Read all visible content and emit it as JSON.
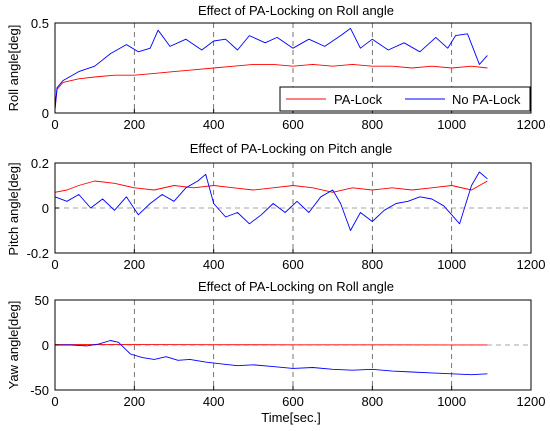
{
  "chart_data": [
    {
      "type": "line",
      "title": "Effect of PA-Locking on Roll angle",
      "xlabel": "",
      "ylabel": "Roll angle[deg]",
      "xlim": [
        0,
        1200
      ],
      "ylim": [
        0,
        0.5
      ],
      "xticks": [
        0,
        200,
        400,
        600,
        800,
        1000,
        1200
      ],
      "yticks": [
        0,
        0.5
      ],
      "xtick_labels": [
        "0",
        "200",
        "400",
        "600",
        "800",
        "1000",
        "1200"
      ],
      "ytick_labels": [
        "0",
        "0.5"
      ],
      "grid": true,
      "legend": {
        "placement": "bottom-right",
        "entries": [
          "PA-Lock",
          "No PA-Lock"
        ]
      },
      "series": [
        {
          "name": "PA-Lock",
          "color": "#ff0000",
          "x": [
            0,
            5,
            20,
            60,
            100,
            150,
            200,
            250,
            300,
            350,
            400,
            450,
            500,
            550,
            600,
            650,
            700,
            750,
            800,
            850,
            900,
            950,
            1000,
            1050,
            1090
          ],
          "y": [
            0.02,
            0.13,
            0.17,
            0.19,
            0.2,
            0.21,
            0.21,
            0.22,
            0.23,
            0.24,
            0.25,
            0.26,
            0.27,
            0.27,
            0.26,
            0.27,
            0.26,
            0.27,
            0.26,
            0.26,
            0.25,
            0.26,
            0.25,
            0.26,
            0.25
          ]
        },
        {
          "name": "No PA-Lock",
          "color": "#0000ff",
          "x": [
            0,
            5,
            20,
            60,
            100,
            140,
            180,
            210,
            240,
            260,
            290,
            330,
            370,
            400,
            430,
            460,
            490,
            530,
            560,
            600,
            640,
            680,
            720,
            745,
            770,
            800,
            840,
            880,
            920,
            960,
            990,
            1010,
            1040,
            1070,
            1090
          ],
          "y": [
            0.02,
            0.14,
            0.18,
            0.23,
            0.26,
            0.33,
            0.38,
            0.34,
            0.36,
            0.46,
            0.37,
            0.41,
            0.35,
            0.4,
            0.41,
            0.35,
            0.43,
            0.39,
            0.42,
            0.36,
            0.41,
            0.37,
            0.43,
            0.47,
            0.36,
            0.41,
            0.35,
            0.39,
            0.34,
            0.42,
            0.36,
            0.43,
            0.44,
            0.27,
            0.32
          ]
        }
      ]
    },
    {
      "type": "line",
      "title": "Effect of PA-Locking on Pitch angle",
      "xlabel": "",
      "ylabel": "Pitch angle[deg]",
      "xlim": [
        0,
        1200
      ],
      "ylim": [
        -0.2,
        0.2
      ],
      "xticks": [
        0,
        200,
        400,
        600,
        800,
        1000,
        1200
      ],
      "yticks": [
        -0.2,
        0,
        0.2
      ],
      "xtick_labels": [
        "0",
        "200",
        "400",
        "600",
        "800",
        "1000",
        "1200"
      ],
      "ytick_labels": [
        "-0.2",
        "0",
        "0.2"
      ],
      "grid": true,
      "series": [
        {
          "name": "PA-Lock",
          "color": "#ff0000",
          "x": [
            0,
            30,
            60,
            100,
            150,
            200,
            250,
            300,
            350,
            400,
            450,
            500,
            550,
            600,
            650,
            700,
            750,
            800,
            850,
            900,
            950,
            1000,
            1050,
            1090
          ],
          "y": [
            0.07,
            0.08,
            0.1,
            0.12,
            0.11,
            0.09,
            0.08,
            0.1,
            0.09,
            0.1,
            0.09,
            0.08,
            0.09,
            0.1,
            0.09,
            0.07,
            0.09,
            0.08,
            0.09,
            0.08,
            0.09,
            0.1,
            0.08,
            0.12
          ]
        },
        {
          "name": "No PA-Lock",
          "color": "#0000ff",
          "x": [
            0,
            30,
            60,
            90,
            120,
            150,
            180,
            210,
            240,
            270,
            300,
            330,
            360,
            380,
            400,
            430,
            460,
            490,
            520,
            550,
            580,
            610,
            640,
            670,
            700,
            720,
            745,
            770,
            800,
            830,
            860,
            890,
            920,
            950,
            980,
            1000,
            1020,
            1050,
            1070,
            1090
          ],
          "y": [
            0.05,
            0.03,
            0.06,
            0.0,
            0.04,
            -0.01,
            0.05,
            -0.03,
            0.02,
            0.06,
            0.03,
            0.09,
            0.12,
            0.15,
            0.02,
            -0.04,
            -0.02,
            -0.07,
            -0.03,
            0.02,
            -0.02,
            0.03,
            -0.02,
            0.05,
            0.08,
            0.02,
            -0.1,
            -0.02,
            -0.06,
            -0.01,
            0.02,
            0.03,
            0.05,
            0.04,
            0.01,
            -0.03,
            -0.07,
            0.1,
            0.16,
            0.13
          ]
        }
      ]
    },
    {
      "type": "line",
      "title": "Effect of PA-Locking on Roll angle",
      "xlabel": "Time[sec.]",
      "ylabel": "Yaw angle[deg]",
      "xlim": [
        0,
        1200
      ],
      "ylim": [
        -50,
        50
      ],
      "xticks": [
        0,
        200,
        400,
        600,
        800,
        1000,
        1200
      ],
      "yticks": [
        -50,
        0,
        50
      ],
      "xtick_labels": [
        "0",
        "200",
        "400",
        "600",
        "800",
        "1000",
        "1200"
      ],
      "ytick_labels": [
        "-50",
        "0",
        "50"
      ],
      "grid": true,
      "series": [
        {
          "name": "PA-Lock",
          "color": "#ff0000",
          "x": [
            0,
            200,
            400,
            600,
            800,
            1000,
            1090
          ],
          "y": [
            0.5,
            0.4,
            0.3,
            0.2,
            0.2,
            0.1,
            0.1
          ]
        },
        {
          "name": "No PA-Lock",
          "color": "#0000ff",
          "x": [
            0,
            40,
            80,
            110,
            140,
            160,
            190,
            220,
            250,
            280,
            310,
            340,
            380,
            420,
            460,
            500,
            550,
            600,
            650,
            700,
            750,
            800,
            850,
            900,
            950,
            1000,
            1050,
            1090
          ],
          "y": [
            0,
            0,
            -1,
            1,
            5,
            3,
            -10,
            -14,
            -16,
            -13,
            -17,
            -16,
            -19,
            -21,
            -23,
            -22,
            -24,
            -26,
            -25,
            -27,
            -28,
            -27,
            -29,
            -30,
            -31,
            -32,
            -33,
            -32
          ]
        }
      ]
    }
  ]
}
